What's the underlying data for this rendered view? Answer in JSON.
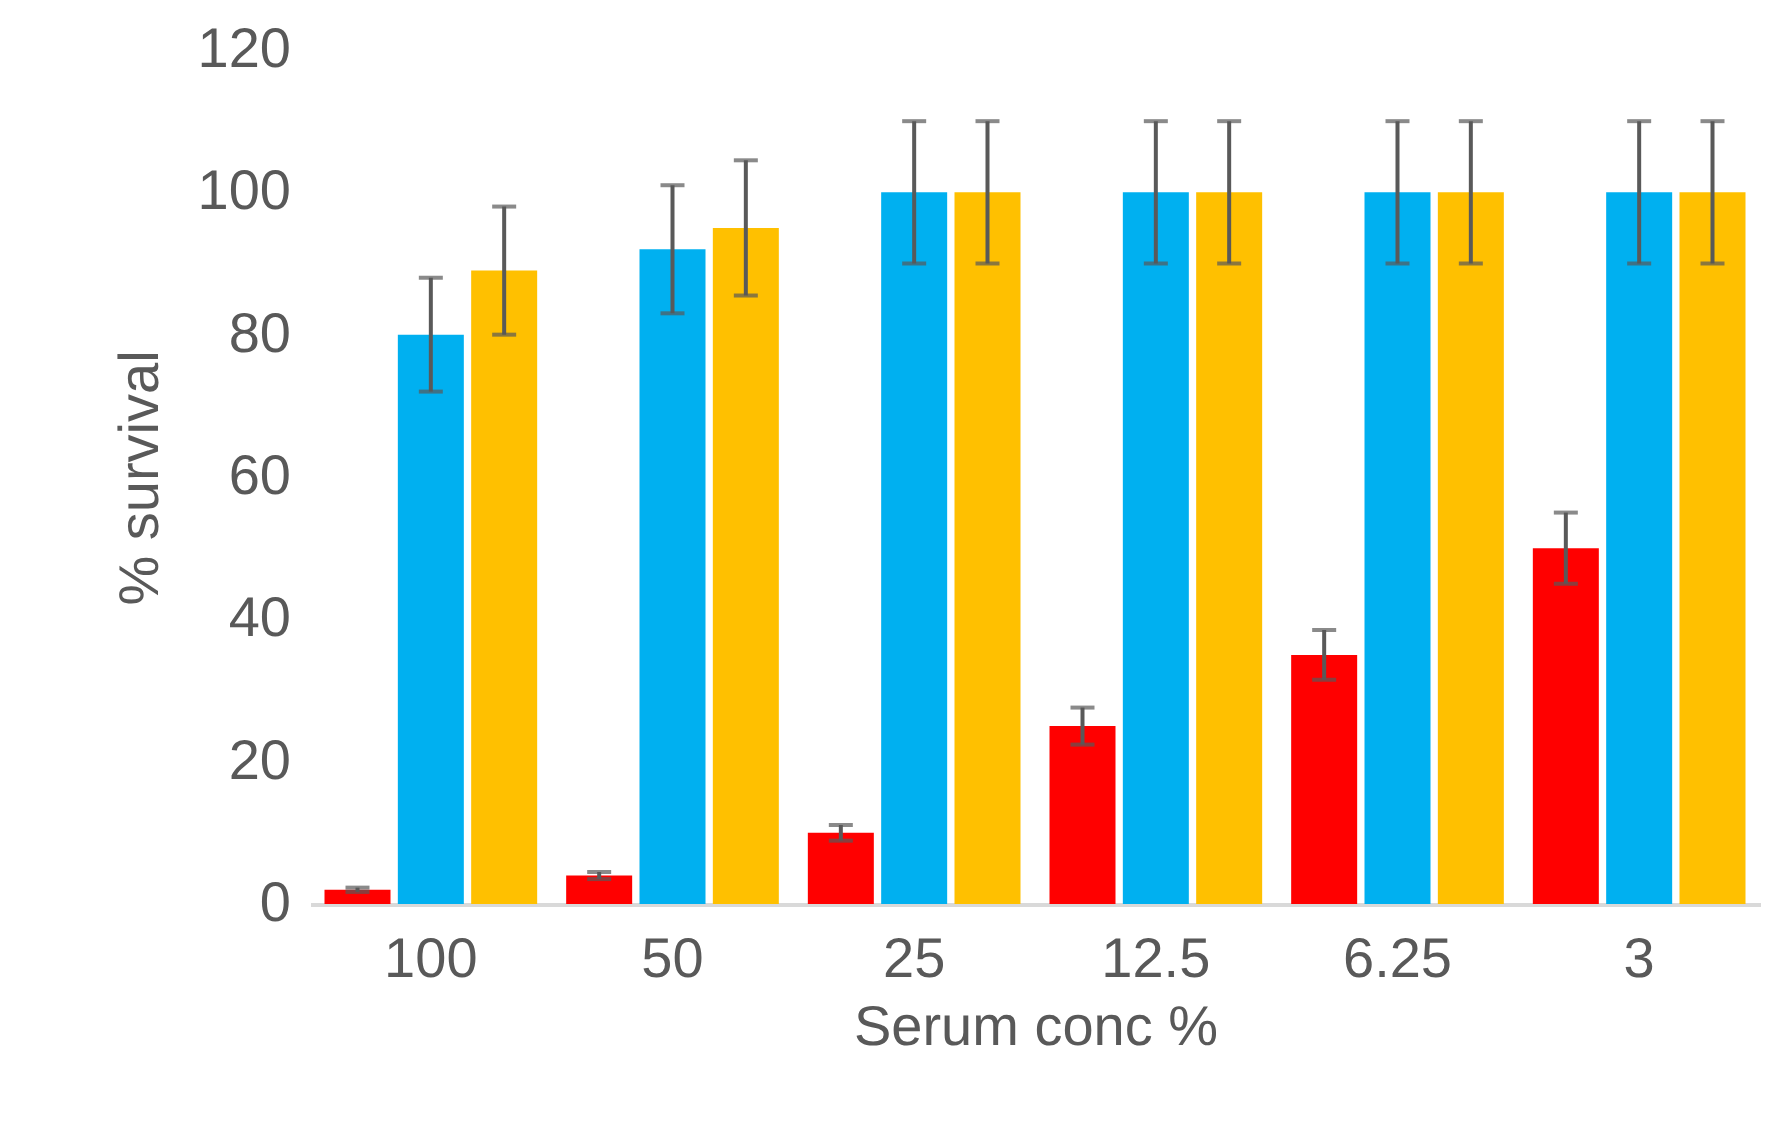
{
  "chart_data": {
    "type": "bar",
    "xlabel": "Serum conc %",
    "ylabel": "% survival",
    "categories": [
      "100",
      "50",
      "25",
      "12.5",
      "6.25",
      "3"
    ],
    "series": [
      {
        "color": "#ff0000",
        "values": [
          2,
          4,
          10,
          25,
          35,
          50
        ],
        "errors": [
          0.3,
          0.5,
          1.1,
          2.6,
          3.5,
          5
        ]
      },
      {
        "color": "#00b0f0",
        "values": [
          80,
          92,
          100,
          100,
          100,
          100
        ],
        "errors": [
          8,
          9,
          10,
          10,
          10,
          10
        ]
      },
      {
        "color": "#ffc000",
        "values": [
          89,
          95,
          100,
          100,
          100,
          100
        ],
        "errors": [
          9,
          9.5,
          10,
          10,
          10,
          10
        ]
      }
    ],
    "ylim": [
      0,
      120
    ],
    "yticks": [
      0,
      20,
      40,
      60,
      80,
      100,
      120
    ],
    "grid": false,
    "legend": false
  }
}
